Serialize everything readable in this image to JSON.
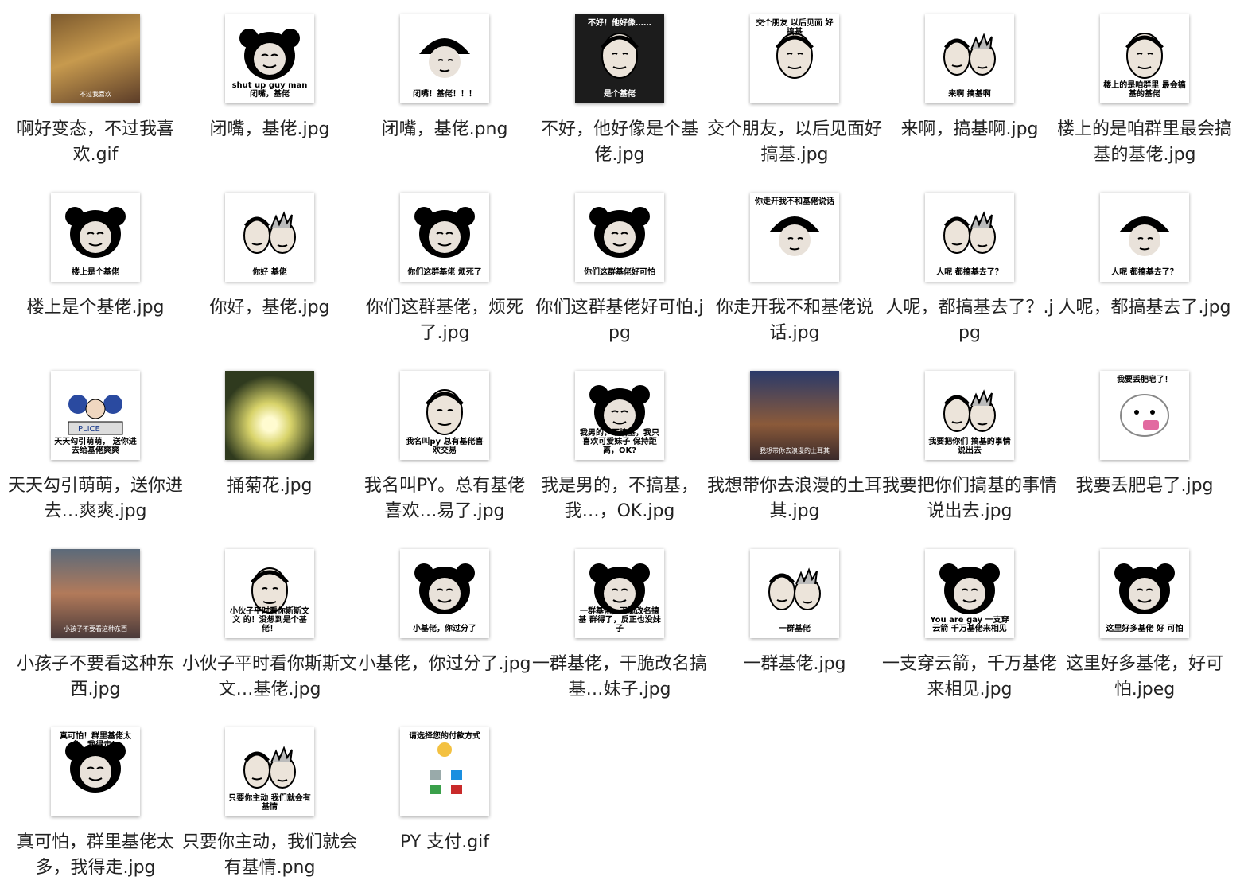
{
  "files": [
    {
      "name": "啊好变态，不过我喜欢.gif",
      "thumb": "monkey-photo",
      "caption": "不过我喜欢"
    },
    {
      "name": "闭嘴，基佬.jpg",
      "thumb": "panda",
      "caption": "shut up guy man 闭嘴，基佬"
    },
    {
      "name": "闭嘴，基佬.png",
      "thumb": "mushroom",
      "caption": "闭嘴！基佬！！！"
    },
    {
      "name": "不好，他好像是个基佬.jpg",
      "thumb": "dark",
      "caption_top": "不好！他好像……",
      "caption": "是个基佬"
    },
    {
      "name": "交个朋友，以后见面好搞基.jpg",
      "thumb": "man",
      "caption_top": "交个朋友 以后见面 好搞基",
      "caption": ""
    },
    {
      "name": "来啊，搞基啊.jpg",
      "thumb": "two-men",
      "caption": "来啊 搞基啊"
    },
    {
      "name": "楼上的是咱群里最会搞基的基佬.jpg",
      "thumb": "man",
      "caption": "楼上的是咱群里 最会搞基的基佬"
    },
    {
      "name": "楼上是个基佬.jpg",
      "thumb": "panda",
      "caption": "楼上是个基佬"
    },
    {
      "name": "你好，基佬.jpg",
      "thumb": "two-men",
      "caption": "你好 基佬"
    },
    {
      "name": "你们这群基佬，烦死了.jpg",
      "thumb": "panda",
      "caption": "你们这群基佬 烦死了"
    },
    {
      "name": "你们这群基佬好可怕.jpg",
      "thumb": "panda",
      "caption": "你们这群基佬好可怕"
    },
    {
      "name": "你走开我不和基佬说话.jpg",
      "thumb": "mushroom",
      "caption_top": "你走开我不和基佬说话",
      "caption": ""
    },
    {
      "name": "人呢，都搞基去了？.jpg",
      "thumb": "two-men",
      "caption": "人呢 都搞基去了？"
    },
    {
      "name": "人呢，都搞基去了.jpg",
      "thumb": "mushroom",
      "caption": "人呢 都搞基去了？"
    },
    {
      "name": "天天勾引萌萌，送你进去…爽爽.jpg",
      "thumb": "police",
      "caption": "天天勾引萌萌， 送你进去给基佬爽爽"
    },
    {
      "name": "捅菊花.jpg",
      "thumb": "flower-photo",
      "caption": ""
    },
    {
      "name": "我名叫PY。总有基佬喜欢…易了.jpg",
      "thumb": "man",
      "caption": "我名叫py 总有基佬喜欢交易"
    },
    {
      "name": "我是男的，不搞基，我…，OK.jpg",
      "thumb": "panda",
      "caption": "我男的，不搞基，我只喜欢可爱妹子 保持距离，OK?"
    },
    {
      "name": "我想带你去浪漫的土耳其.jpg",
      "thumb": "gym-photo",
      "caption": "我想带你去浪漫的土耳其"
    },
    {
      "name": "我要把你们搞基的事情说出去.jpg",
      "thumb": "two-men",
      "caption": "我要把你们 搞基的事情说出去"
    },
    {
      "name": "我要丢肥皂了.jpg",
      "thumb": "blob",
      "caption_top": "我要丢肥皂了！",
      "caption": ""
    },
    {
      "name": "小孩子不要看这种东西.jpg",
      "thumb": "muscle-photo",
      "caption": "小孩子不要看这种东西"
    },
    {
      "name": "小伙子平时看你斯斯文文…基佬.jpg",
      "thumb": "man",
      "caption": "小伙子平时看你斯斯文文 的！没想到是个基佬！"
    },
    {
      "name": "小基佬，你过分了.jpg",
      "thumb": "panda",
      "caption": "小基佬，你过分了"
    },
    {
      "name": "一群基佬，干脆改名搞基…妹子.jpg",
      "thumb": "panda",
      "caption": "一群基佬，干脆改名搞基 群得了，反正也没妹子"
    },
    {
      "name": "一群基佬.jpg",
      "thumb": "two-men",
      "caption": "一群基佬"
    },
    {
      "name": "一支穿云箭，千万基佬来相见.jpg",
      "thumb": "panda",
      "caption": "You are gay 一支穿云箭 千万基佬来相见"
    },
    {
      "name": "这里好多基佬，好可怕.jpeg",
      "thumb": "panda",
      "caption": "这里好多基佬 好 可怕"
    },
    {
      "name": "真可怕，群里基佬太多，我得走.jpg",
      "thumb": "panda",
      "caption_top": "真可怕！群里基佬太多，我得走！",
      "caption": ""
    },
    {
      "name": "只要你主动，我们就会有基情.png",
      "thumb": "two-men",
      "caption": "只要你主动 我们就会有基情"
    },
    {
      "name": "PY 支付.gif",
      "thumb": "pay",
      "caption_top": "请选择您的付款方式",
      "caption": ""
    }
  ],
  "colors": {
    "panda": "#000000",
    "skin": "#f1e4d6",
    "text": "#222222"
  }
}
